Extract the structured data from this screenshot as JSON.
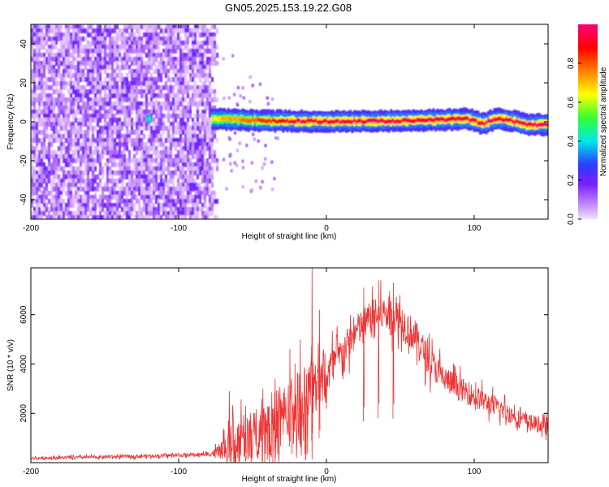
{
  "figure_title": "GN05.2025.153.19.22.G08",
  "colors": {
    "snr_line": "#ee3333",
    "noise_light": "#d8b8f4",
    "noise_dark": "#6a1fe0",
    "axis": "#000000"
  },
  "colorbar": {
    "label": "Normalized spectral amplitude",
    "ticks": [
      "0.0",
      "0.2",
      "0.4",
      "0.6",
      "0.8"
    ],
    "tick_values": [
      0.0,
      0.2,
      0.4,
      0.6,
      0.8
    ],
    "range": [
      0,
      1
    ],
    "colormap": [
      "#cc99ff",
      "#7a1fff",
      "#2a3cff",
      "#00e8e8",
      "#33ff33",
      "#ffff00",
      "#ff7f00",
      "#ff0000",
      "#ff0077"
    ]
  },
  "chart_data": [
    {
      "type": "heatmap",
      "title": "GN05.2025.153.19.22.G08",
      "xlabel": "Height of straight line (km)",
      "ylabel": "Frequency (Hz)",
      "xlim": [
        -200,
        150
      ],
      "ylim": [
        -50,
        50
      ],
      "xticks": [
        -200,
        -100,
        0,
        100
      ],
      "yticks": [
        -40,
        -20,
        0,
        20,
        40
      ],
      "xtick_labels": [
        "-200",
        "-100",
        "0",
        "100"
      ],
      "ytick_labels": [
        "-40",
        "-20",
        "0",
        "20",
        "40"
      ],
      "noise_region_x": [
        -200,
        -72
      ],
      "signal_band": {
        "x_start": -78,
        "x_end": 150,
        "center_hz": [
          [
            -78,
            1.5
          ],
          [
            -60,
            1.0
          ],
          [
            -40,
            0.5
          ],
          [
            -20,
            0.3
          ],
          [
            0,
            0.2
          ],
          [
            20,
            0.2
          ],
          [
            50,
            0.5
          ],
          [
            80,
            1.0
          ],
          [
            95,
            1.5
          ],
          [
            105,
            -1.0
          ],
          [
            115,
            1.5
          ],
          [
            125,
            0.5
          ],
          [
            135,
            -1.5
          ],
          [
            150,
            -1.5
          ]
        ],
        "peak_amplitude": 1.0
      },
      "isolated_blob": {
        "x": -120,
        "y_hz": 1.5,
        "amplitude": 0.5
      },
      "grid": false
    },
    {
      "type": "line",
      "title": "",
      "xlabel": "Height of straight line (km)",
      "ylabel": "SNR (10 * v/v)",
      "xlim": [
        -200,
        150
      ],
      "ylim": [
        0,
        7900
      ],
      "xticks": [
        -200,
        -100,
        0,
        100
      ],
      "yticks": [
        2000,
        4000,
        6000
      ],
      "xtick_labels": [
        "-200",
        "-100",
        "0",
        "100"
      ],
      "ytick_labels": [
        "2000",
        "4000",
        "6000"
      ],
      "grid": false,
      "series": [
        {
          "envelope_x": [
            -200,
            -150,
            -100,
            -80,
            -72,
            -65,
            -60,
            -50,
            -40,
            -30,
            -20,
            -10,
            0,
            10,
            20,
            30,
            40,
            50,
            60,
            70,
            80,
            90,
            100,
            110,
            120,
            130,
            140,
            150
          ],
          "envelope_y": [
            180,
            230,
            300,
            340,
            450,
            700,
            900,
            1100,
            1500,
            1900,
            2400,
            3000,
            3600,
            4400,
            5300,
            5900,
            6100,
            5800,
            5100,
            4100,
            3400,
            3000,
            2700,
            2400,
            2100,
            1800,
            1600,
            1400
          ],
          "jitter": [
            80,
            90,
            100,
            110,
            400,
            1100,
            1400,
            1400,
            1600,
            1800,
            1800,
            1700,
            1300,
            1000,
            1000,
            1000,
            1000,
            1100,
            1000,
            900,
            800,
            700,
            650,
            600,
            550,
            500,
            450,
            450
          ],
          "spikes": [
            [
              -66,
              2900
            ],
            [
              -55,
              2300
            ],
            [
              -35,
              3400
            ],
            [
              -25,
              4600
            ],
            [
              -18,
              5000
            ],
            [
              -10,
              7900
            ],
            [
              -5,
              6200
            ],
            [
              25,
              7100
            ],
            [
              35,
              7400
            ],
            [
              45,
              7300
            ]
          ]
        }
      ]
    }
  ]
}
